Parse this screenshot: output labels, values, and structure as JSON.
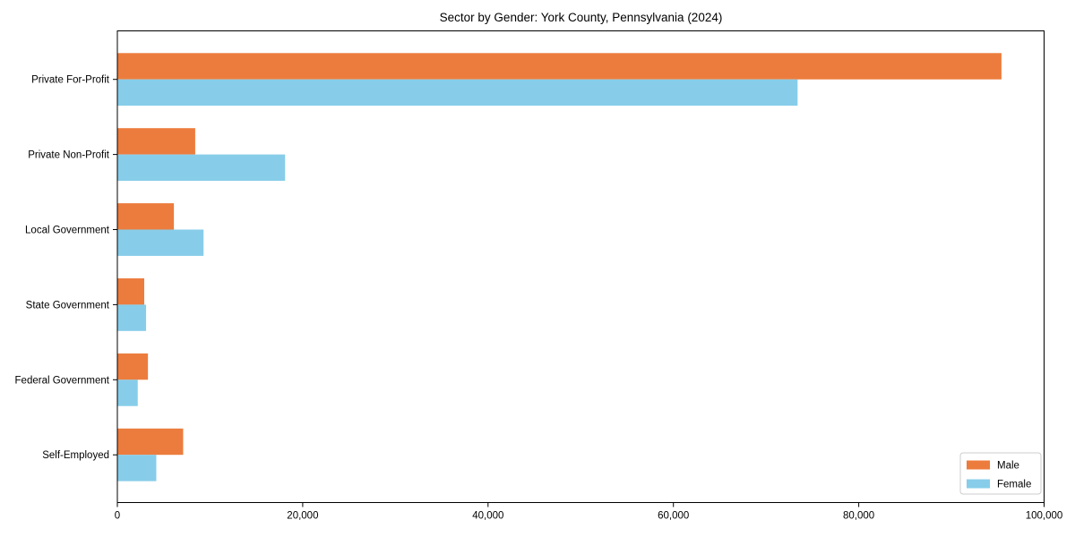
{
  "figure": {
    "background": "#ffffff"
  },
  "chart_data": {
    "type": "bar",
    "orientation": "horizontal",
    "title": "Sector by Gender: York County, Pennsylvania (2024)",
    "categories": [
      "Private For-Profit",
      "Private Non-Profit",
      "Local Government",
      "State Government",
      "Federal Government",
      "Self-Employed"
    ],
    "series": [
      {
        "name": "Male",
        "color": "#ec7c3d",
        "values": [
          95400,
          8400,
          6100,
          2900,
          3300,
          7100
        ]
      },
      {
        "name": "Female",
        "color": "#87cde9",
        "values": [
          73400,
          18100,
          9300,
          3100,
          2200,
          4200
        ]
      }
    ],
    "xlabel": "",
    "ylabel": "",
    "xlim": [
      0,
      100000
    ],
    "xticks": [
      0,
      20000,
      40000,
      60000,
      80000,
      100000
    ],
    "xtick_labels": [
      "0",
      "20,000",
      "40,000",
      "60,000",
      "80,000",
      "100,000"
    ],
    "grid": false,
    "legend_position": "lower right",
    "legend_labels": [
      "Male",
      "Female"
    ]
  },
  "style": {
    "spine_color": "#000000",
    "text_color": "#000000",
    "legend_border_color": "#cccccc",
    "legend_background": "#ffffff"
  }
}
